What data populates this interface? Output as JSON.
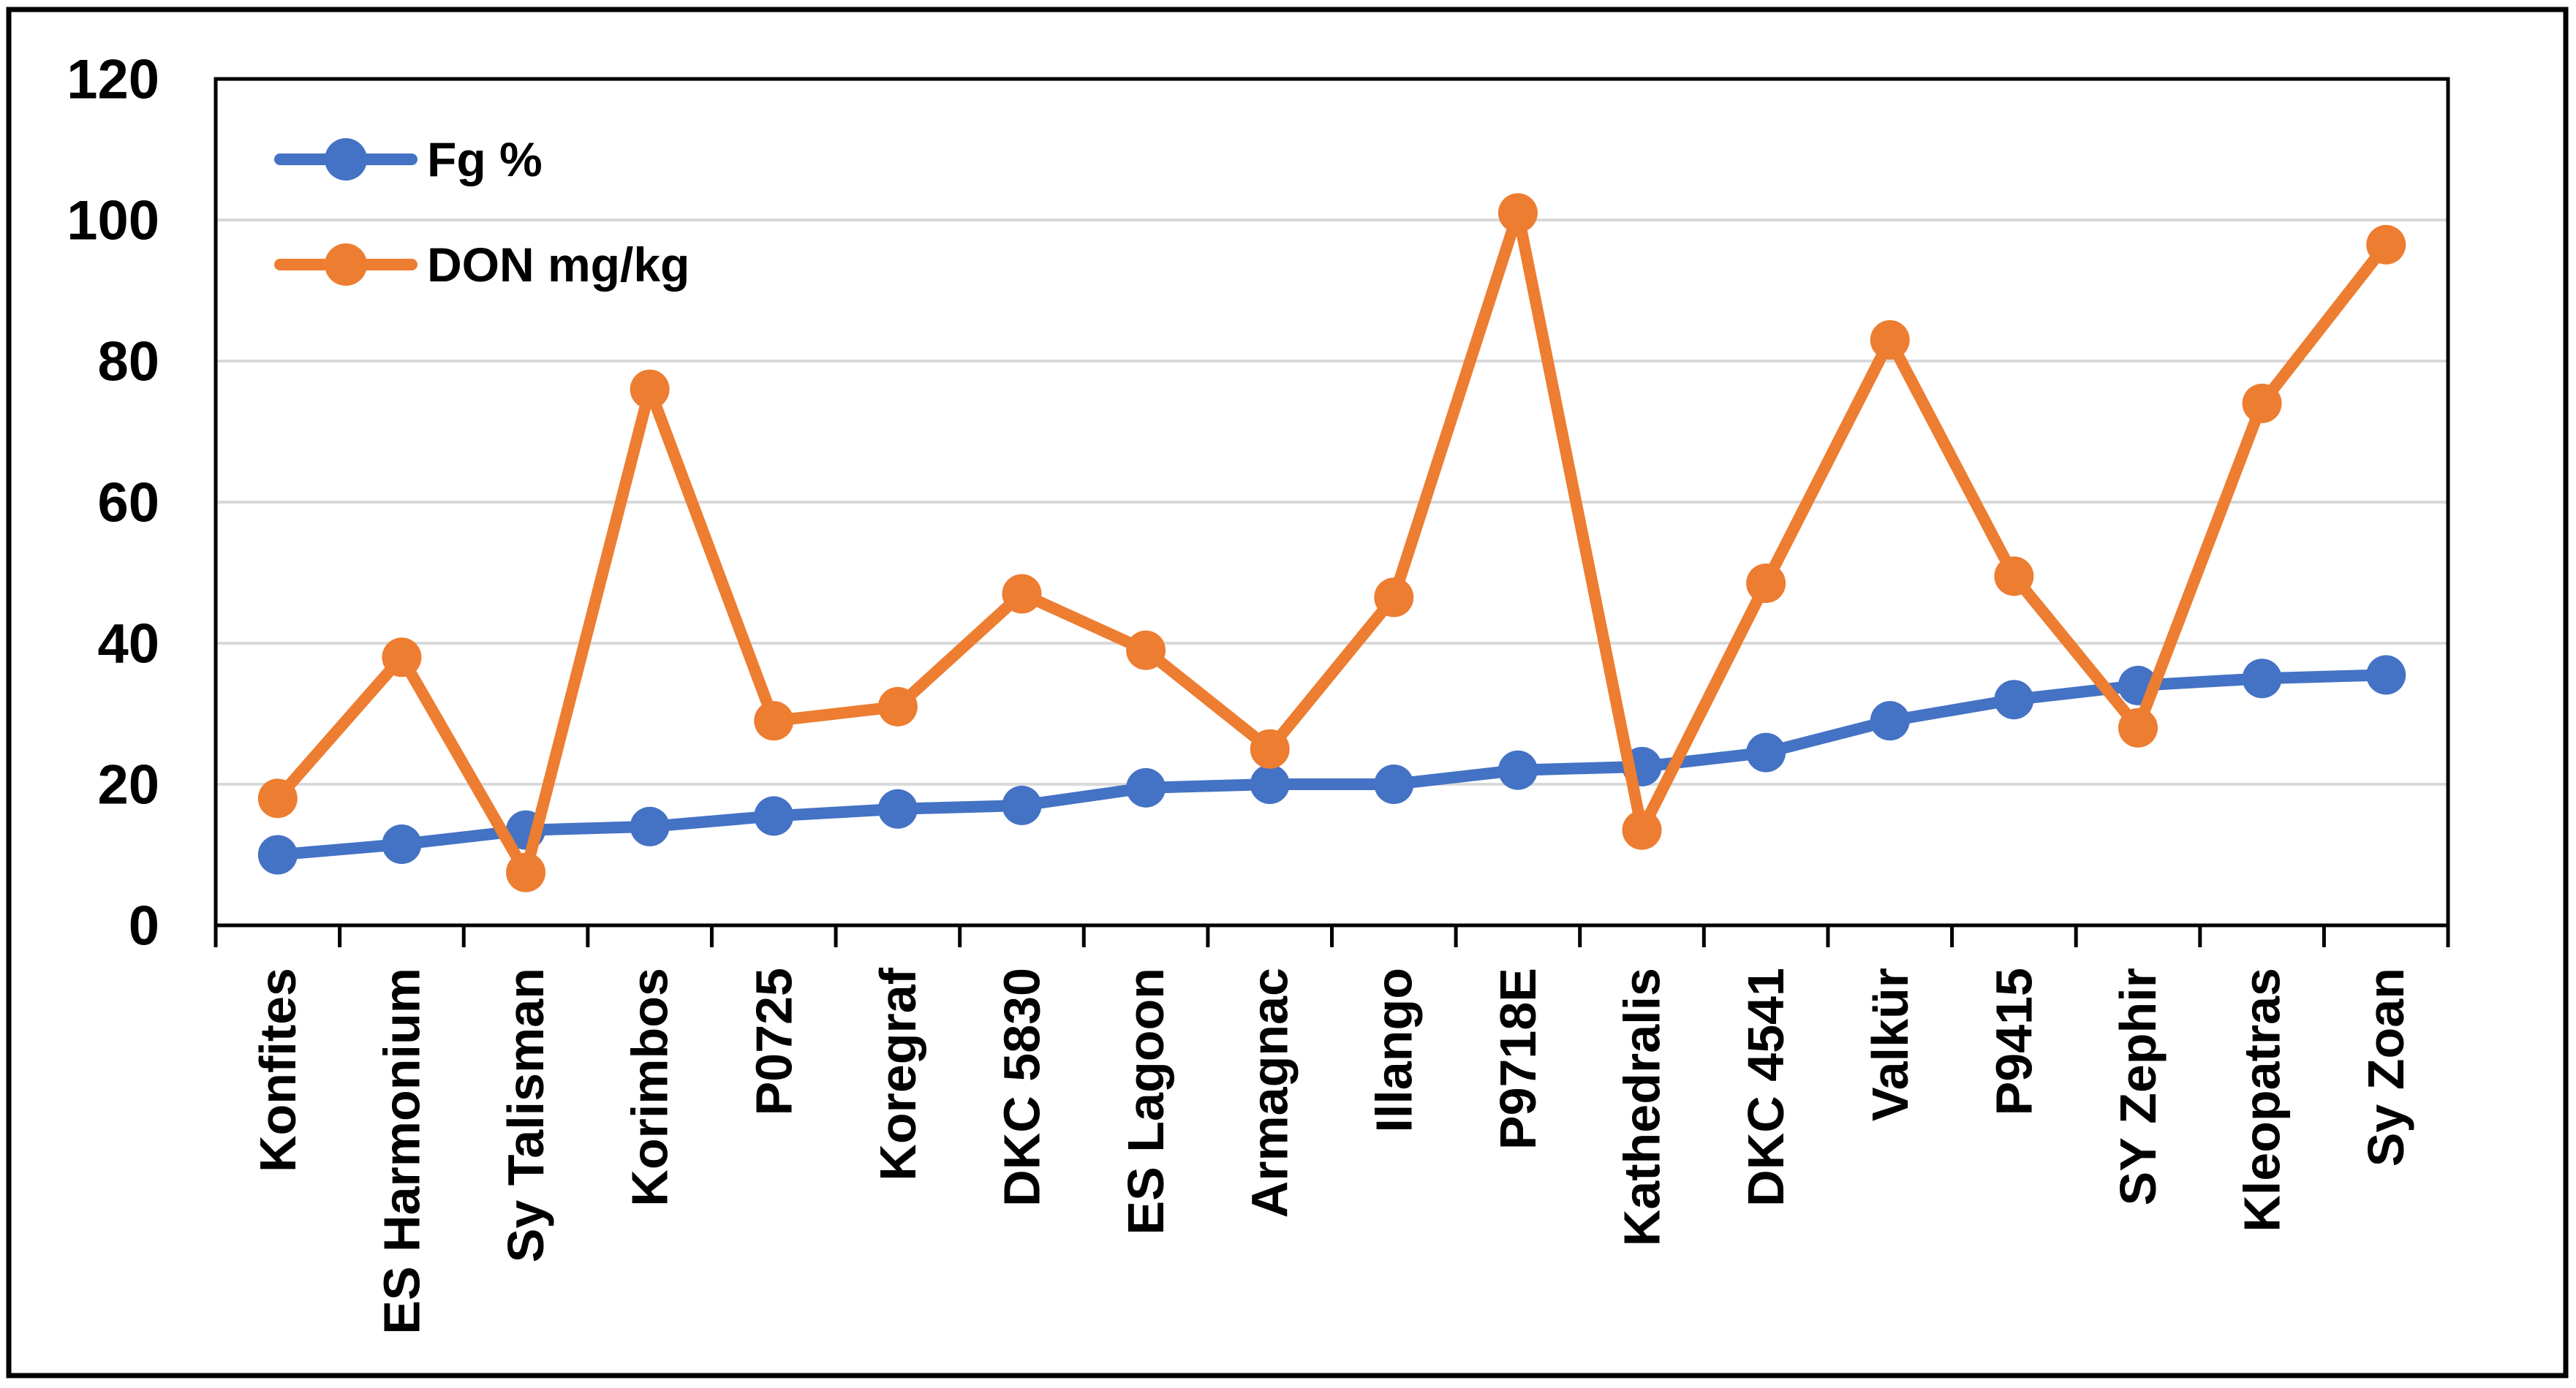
{
  "chart_data": {
    "type": "line",
    "title": "",
    "xlabel": "",
    "ylabel": "",
    "categories": [
      "Konfites",
      "ES Harmonium",
      "Sy Talisman",
      "Korimbos",
      "P0725",
      "Koregraf",
      "DKC 5830",
      "ES Lagoon",
      "Armagnac",
      "Illango",
      "P9718E",
      "Kathedralis",
      "DKC 4541",
      "Valkür",
      "P9415",
      "SY Zephir",
      "Kleopatras",
      "Sy Zoan"
    ],
    "series": [
      {
        "name": "Fg %",
        "color": "#4472C4",
        "values": [
          10,
          11.5,
          13.5,
          14,
          15.5,
          16.5,
          17,
          19.5,
          20,
          20,
          22,
          22.5,
          24.5,
          29,
          32,
          34,
          35,
          35.5
        ]
      },
      {
        "name": "DON mg/kg",
        "color": "#ED7D31",
        "values": [
          18,
          38,
          7.5,
          76,
          29,
          31,
          47,
          39,
          25,
          46.5,
          101,
          13.5,
          48.5,
          83,
          49.5,
          28,
          74,
          96.5
        ]
      }
    ],
    "ylim": [
      0,
      120
    ],
    "yticks": [
      0,
      20,
      40,
      60,
      80,
      100,
      120
    ],
    "grid": true,
    "gridline_color": "#D9D9D9",
    "axis_color": "#000000",
    "plot_background": "#FFFFFF",
    "outer_border_color": "#000000",
    "legend_position": "top-left-inside",
    "legend_marker": "line-with-circle"
  }
}
